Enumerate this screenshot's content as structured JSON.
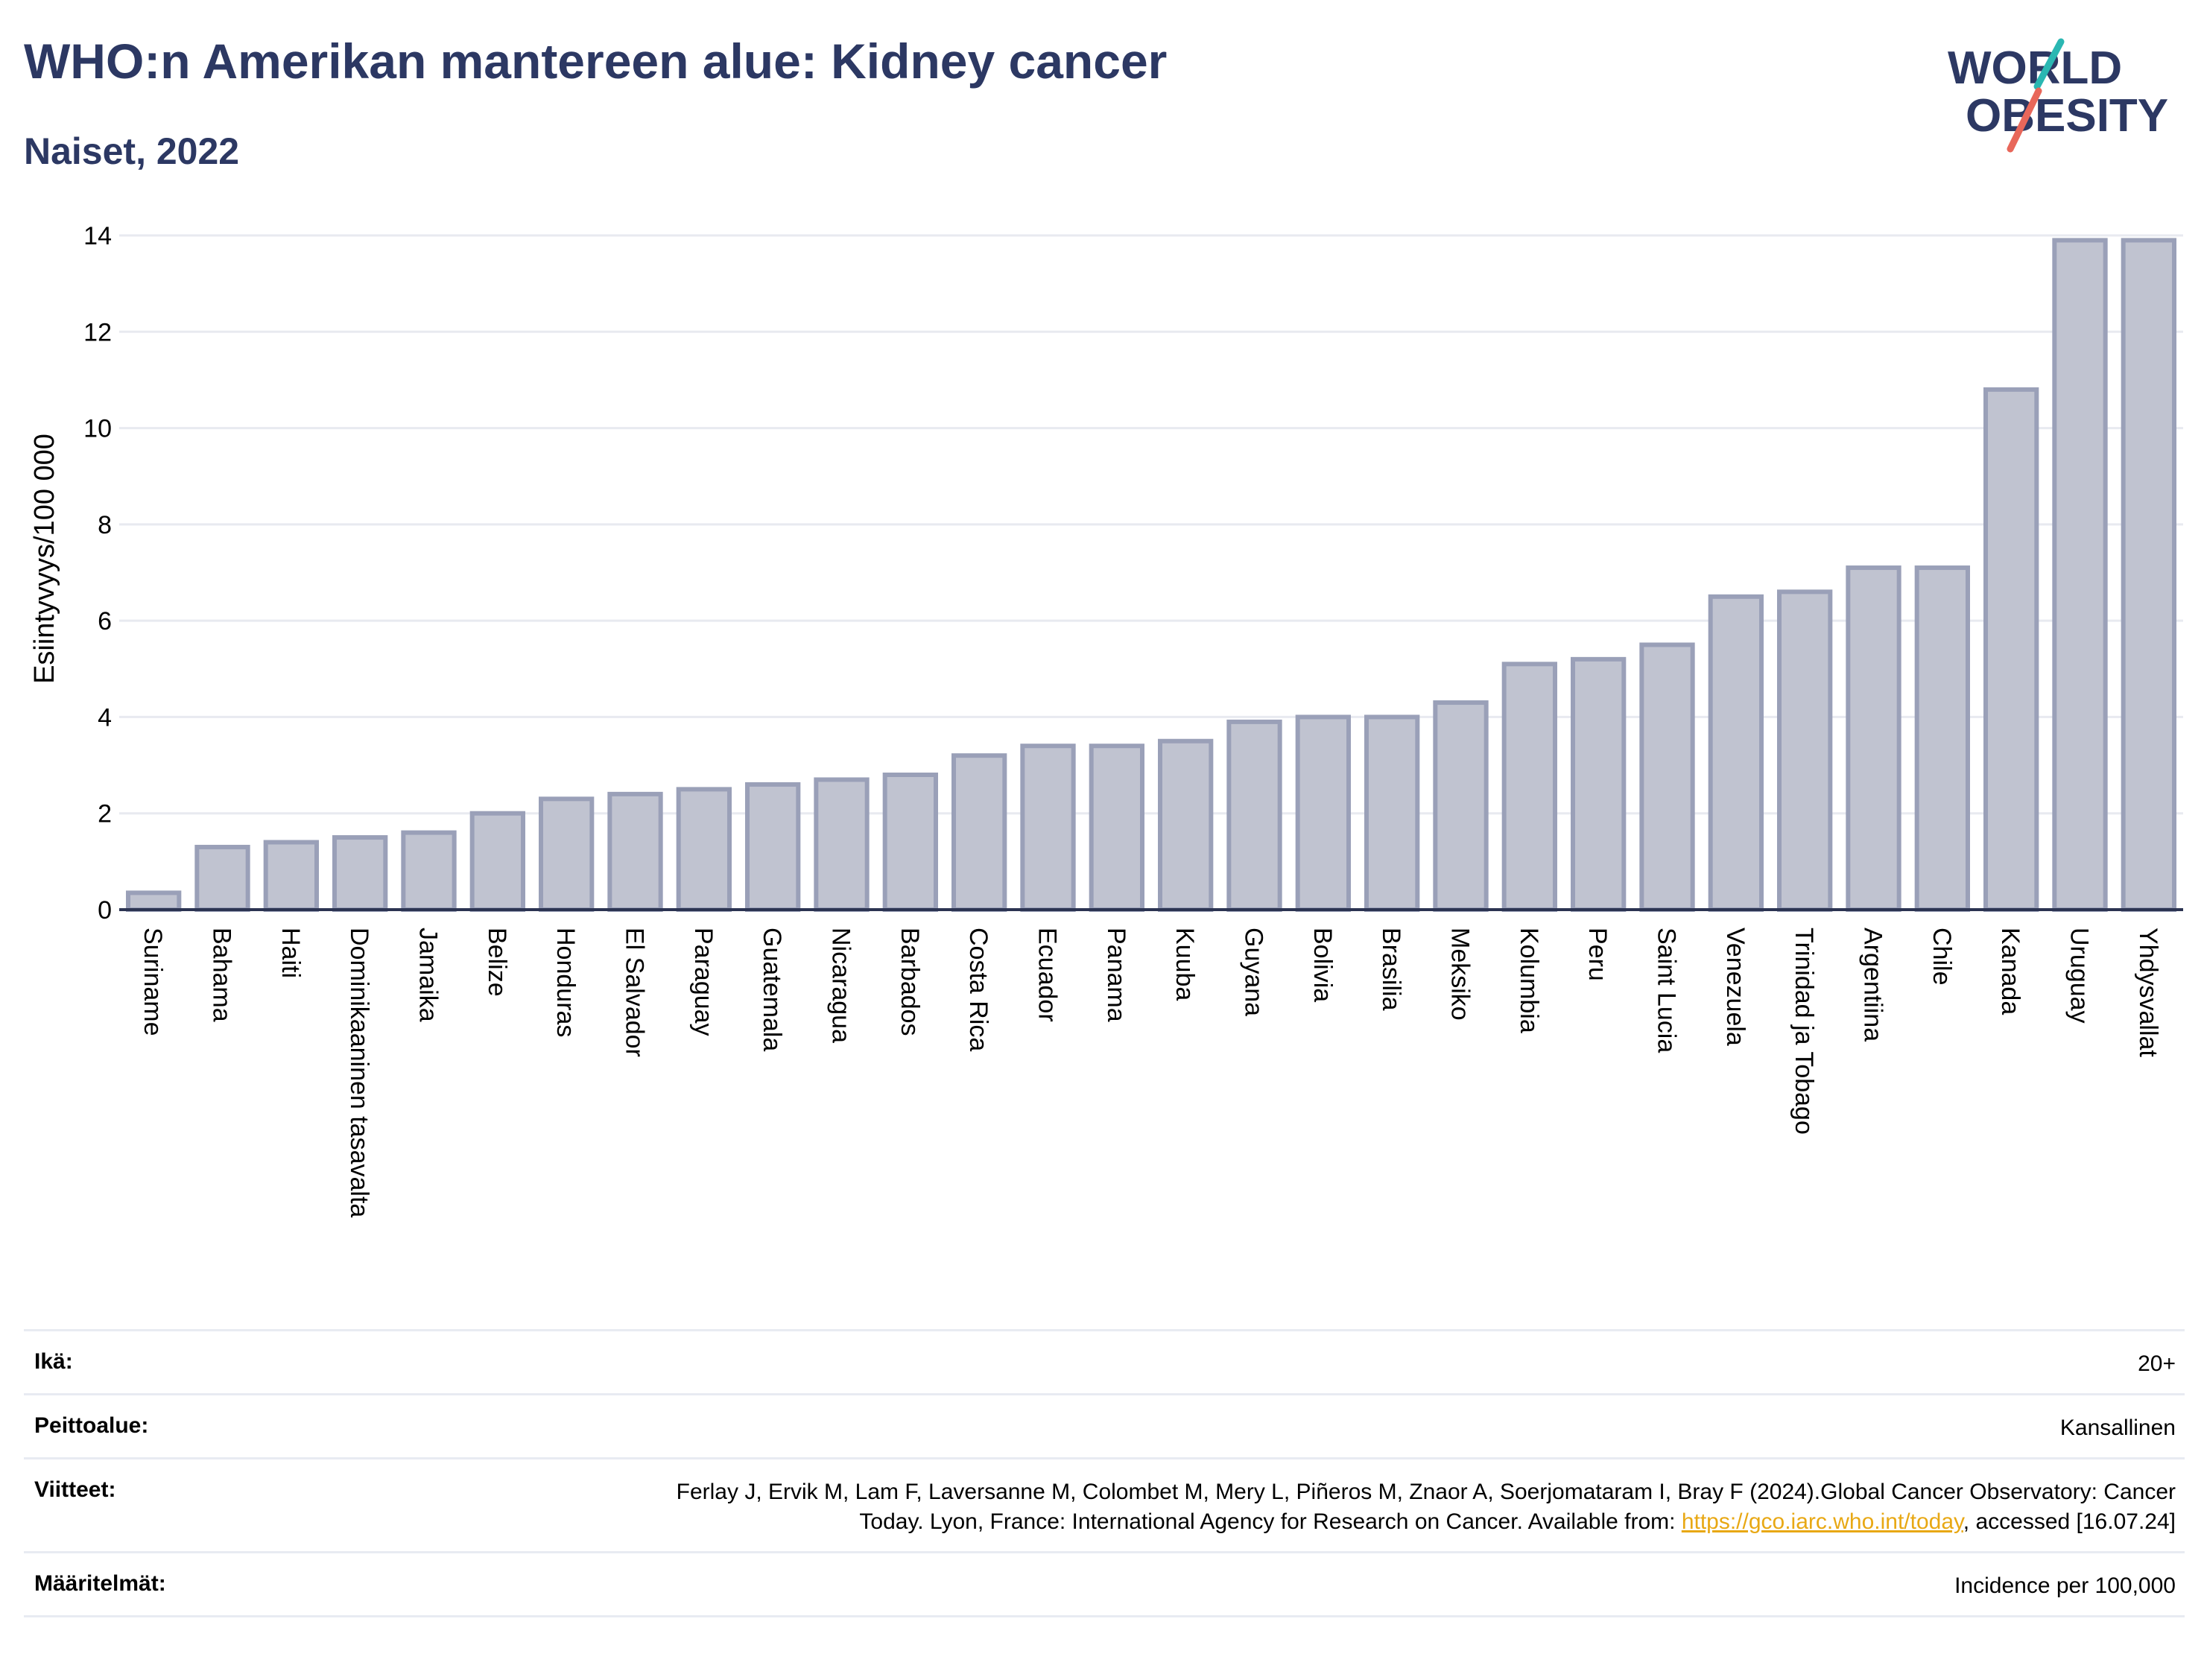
{
  "header": {
    "title": "WHO:n Amerikan mantereen alue: Kidney cancer",
    "subtitle": "Naiset, 2022"
  },
  "logo": {
    "line1": "WORLD",
    "line2": "OBESITY"
  },
  "colors": {
    "bar_fill": "#c0c3d0",
    "bar_stroke": "#9aa0b8",
    "axis": "#2c3452",
    "grid": "#e8eaf0",
    "title": "#2c3863",
    "logo_teal": "#2ab7b2",
    "logo_coral": "#e8675a"
  },
  "chart_data": {
    "type": "bar",
    "title": "WHO:n Amerikan mantereen alue: Kidney cancer",
    "subtitle": "Naiset, 2022",
    "xlabel": "",
    "ylabel": "Esiintyvyys/100 000",
    "ylim": [
      0,
      14
    ],
    "yticks": [
      0,
      2,
      4,
      6,
      8,
      10,
      12,
      14
    ],
    "grid": true,
    "categories": [
      "Suriname",
      "Bahama",
      "Haiti",
      "Dominikaaninen tasavalta",
      "Jamaika",
      "Belize",
      "Honduras",
      "El Salvador",
      "Paraguay",
      "Guatemala",
      "Nicaragua",
      "Barbados",
      "Costa Rica",
      "Ecuador",
      "Panama",
      "Kuuba",
      "Guyana",
      "Bolivia",
      "Brasilia",
      "Meksiko",
      "Kolumbia",
      "Peru",
      "Saint Lucia",
      "Venezuela",
      "Trinidad ja Tobago",
      "Argentiina",
      "Chile",
      "Kanada",
      "Uruguay",
      "Yhdysvallat"
    ],
    "values": [
      0.35,
      1.3,
      1.4,
      1.5,
      1.6,
      2.0,
      2.3,
      2.4,
      2.5,
      2.6,
      2.7,
      2.8,
      3.2,
      3.4,
      3.4,
      3.5,
      3.9,
      4.0,
      4.0,
      4.3,
      5.1,
      5.2,
      5.5,
      6.5,
      6.6,
      7.1,
      7.1,
      10.8,
      13.9,
      13.9
    ]
  },
  "info": [
    {
      "label": "Ikä:",
      "value": "20+"
    },
    {
      "label": "Peittoalue:",
      "value": "Kansallinen"
    },
    {
      "label": "Viitteet:",
      "value_pre": "Ferlay J, Ervik M, Lam F, Laversanne M, Colombet M, Mery L, Piñeros M, Znaor A, Soerjomataram I, Bray F (2024).Global Cancer Observatory: Cancer Today. Lyon, France: International Agency for Research on Cancer. Available from: ",
      "link": "https://gco.iarc.who.int/today",
      "value_post": ", accessed [16.07.24]"
    },
    {
      "label": "Määritelmät:",
      "value": "Incidence per 100,000"
    }
  ]
}
